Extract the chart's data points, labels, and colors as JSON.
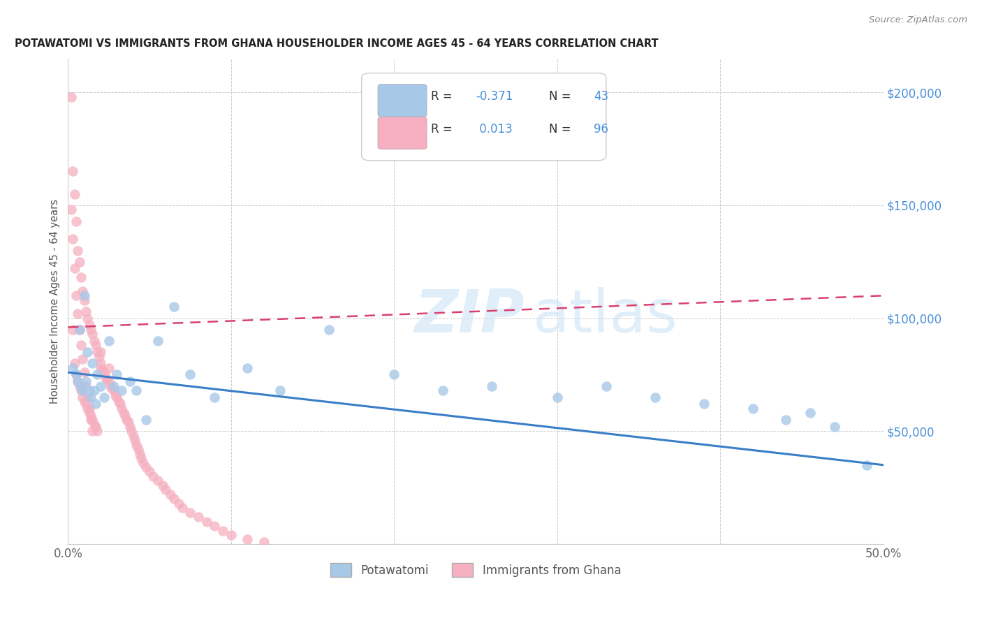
{
  "title": "POTAWATOMI VS IMMIGRANTS FROM GHANA HOUSEHOLDER INCOME AGES 45 - 64 YEARS CORRELATION CHART",
  "source": "Source: ZipAtlas.com",
  "ylabel": "Householder Income Ages 45 - 64 years",
  "xlim": [
    0.0,
    0.5
  ],
  "ylim": [
    0,
    215000
  ],
  "color_blue": "#a8c8e8",
  "color_pink": "#f5afc0",
  "line_blue": "#3a7ec8",
  "line_pink": "#d94070",
  "watermark_color": "#cce4f5",
  "background_color": "#ffffff",
  "grid_color": "#cccccc",
  "blue_line_y0": 76000,
  "blue_line_y1": 35000,
  "pink_line_y0": 96000,
  "pink_line_y1": 110000,
  "legend_r1_label": "R = ",
  "legend_r1_val": "-0.371",
  "legend_n1_label": "N = ",
  "legend_n1_val": "43",
  "legend_r2_label": "R =  ",
  "legend_r2_val": "0.013",
  "legend_n2_label": "N = ",
  "legend_n2_val": "96",
  "bottom_label1": "Potawatomi",
  "bottom_label2": "Immigrants from Ghana"
}
